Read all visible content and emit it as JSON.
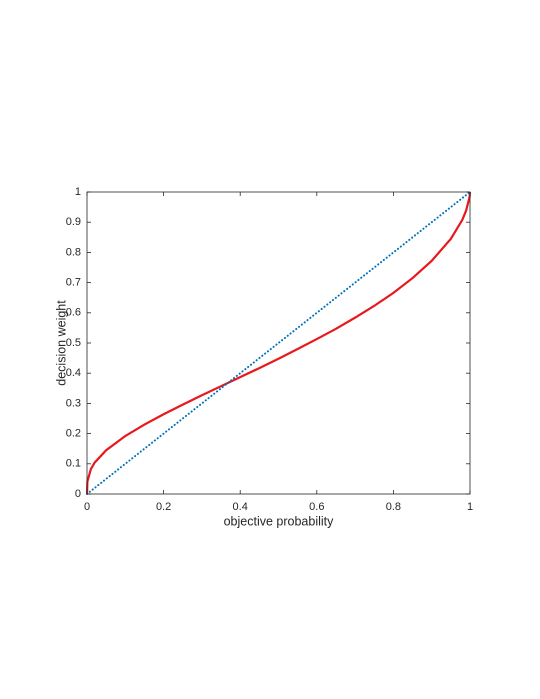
{
  "chart_data": {
    "type": "line",
    "xlabel": "objective probability",
    "ylabel": "decision weight",
    "xlim": [
      0,
      1
    ],
    "ylim": [
      0,
      1
    ],
    "xticks": [
      0,
      0.2,
      0.4,
      0.6,
      0.8,
      1
    ],
    "yticks": [
      0,
      0.1,
      0.2,
      0.3,
      0.4,
      0.5,
      0.6,
      0.7,
      0.8,
      0.9,
      1
    ],
    "series": [
      {
        "color": "#e8181c",
        "style": "solid",
        "x": [
          0,
          0.001,
          0.01,
          0.02,
          0.05,
          0.1,
          0.15,
          0.2,
          0.25,
          0.3,
          0.35,
          0.4,
          0.45,
          0.5,
          0.55,
          0.6,
          0.65,
          0.7,
          0.75,
          0.8,
          0.85,
          0.9,
          0.95,
          0.98,
          0.99,
          0.999,
          1
        ],
        "values": [
          0,
          0.041,
          0.082,
          0.104,
          0.145,
          0.192,
          0.23,
          0.264,
          0.296,
          0.327,
          0.357,
          0.387,
          0.417,
          0.448,
          0.48,
          0.513,
          0.547,
          0.584,
          0.623,
          0.666,
          0.715,
          0.772,
          0.845,
          0.908,
          0.939,
          0.984,
          1
        ]
      },
      {
        "color": "#0072bd",
        "style": "dotted",
        "x": [
          0,
          1
        ],
        "values": [
          0,
          1
        ]
      }
    ]
  }
}
